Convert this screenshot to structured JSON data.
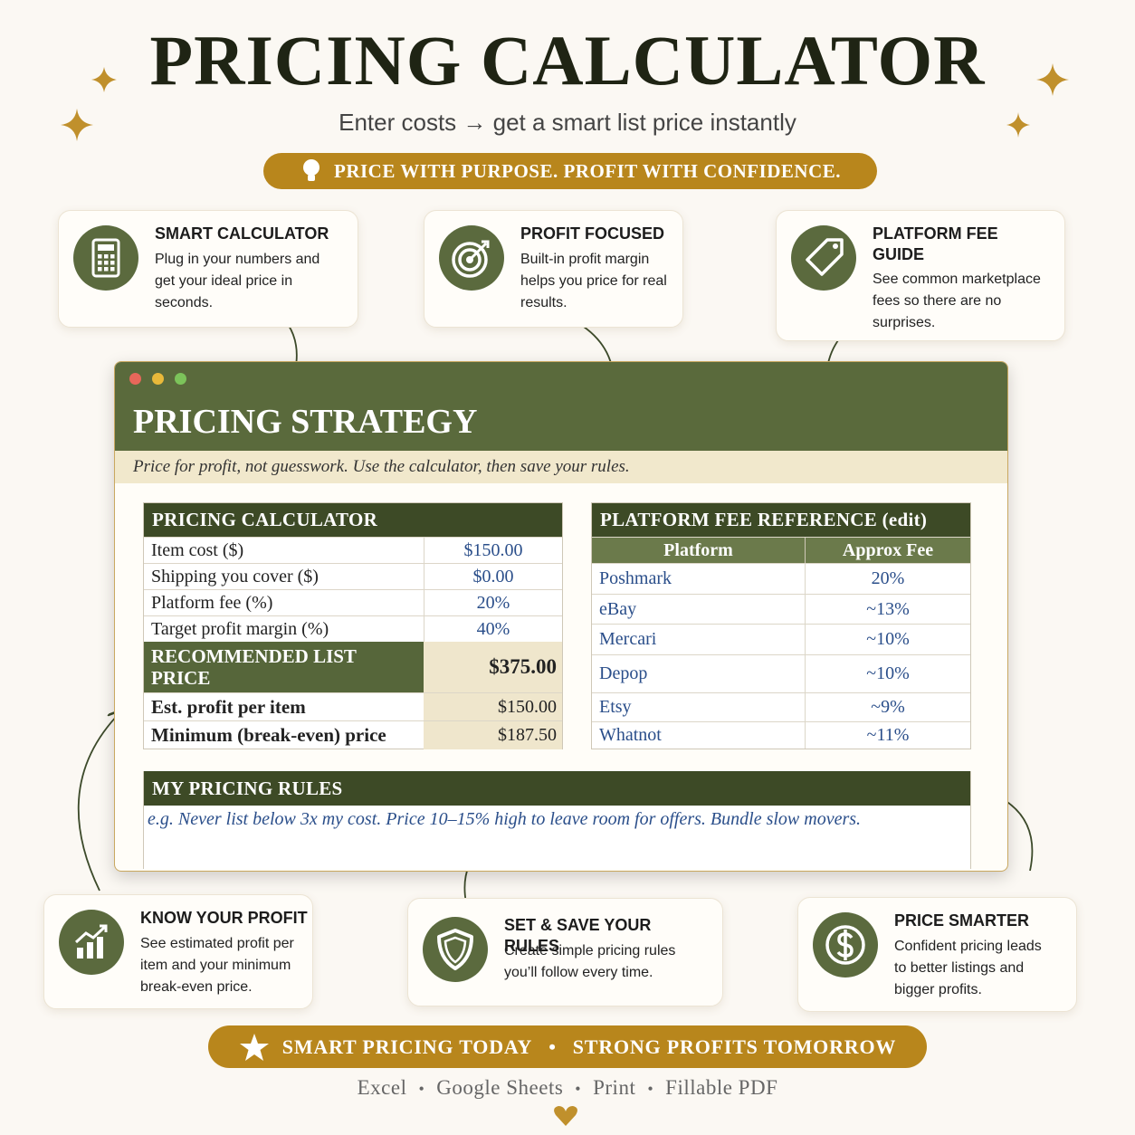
{
  "header": {
    "title": "PRICING CALCULATOR",
    "subtitle": "Enter costs → get a smart list price instantly",
    "tagline": "PRICE WITH PURPOSE. PROFIT WITH CONFIDENCE."
  },
  "top_features": [
    {
      "title": "SMART CALCULATOR",
      "text": "Plug in your numbers and get your ideal price in seconds."
    },
    {
      "title": "PROFIT FOCUSED",
      "text": "Built-in profit margin helps you price for real results."
    },
    {
      "title": "PLATFORM FEE GUIDE",
      "text": "See common marketplace fees so there are no surprises."
    }
  ],
  "window": {
    "title": "PRICING STRATEGY",
    "subtitle": "Price for profit, not guesswork. Use the calculator, then save your rules."
  },
  "calculator": {
    "title": "PRICING CALCULATOR",
    "inputs": [
      [
        "Item cost ($)",
        "$150.00"
      ],
      [
        "Shipping you cover ($)",
        "$0.00"
      ],
      [
        "Platform fee (%)",
        "20%"
      ],
      [
        "Target profit margin (%)",
        "40%"
      ]
    ],
    "recommended": {
      "label": "RECOMMENDED LIST PRICE",
      "value": "$375.00"
    },
    "outputs": [
      [
        "Est. profit per item",
        "$150.00"
      ],
      [
        "Minimum (break-even) price",
        "$187.50"
      ]
    ]
  },
  "fee_reference": {
    "title": "PLATFORM FEE REFERENCE (edit)",
    "headers": [
      "Platform",
      "Approx Fee"
    ],
    "rows": [
      [
        "Poshmark",
        "20%"
      ],
      [
        "eBay",
        "~13%"
      ],
      [
        "Mercari",
        "~10%"
      ],
      [
        "Depop",
        "~10%"
      ],
      [
        "Etsy",
        "~9%"
      ],
      [
        "Whatnot",
        "~11%"
      ]
    ]
  },
  "rules": {
    "title": "MY PRICING RULES",
    "example": "e.g. Never list below 3x my cost. Price 10–15% high to leave room for offers. Bundle slow movers."
  },
  "bottom_features": [
    {
      "title": "KNOW YOUR PROFIT",
      "text": "See estimated profit per item and your minimum break-even price."
    },
    {
      "title": "SET & SAVE YOUR RULES",
      "text": "Create simple pricing rules you’ll follow every time."
    },
    {
      "title": "PRICE SMARTER",
      "text": "Confident pricing leads to better listings and bigger profits."
    }
  ],
  "footer": {
    "banner": [
      "SMART PRICING TODAY",
      "STRONG PROFITS TOMORROW"
    ],
    "separator": "•",
    "formats": [
      "Excel",
      "Google Sheets",
      "Print",
      "Fillable PDF"
    ]
  }
}
